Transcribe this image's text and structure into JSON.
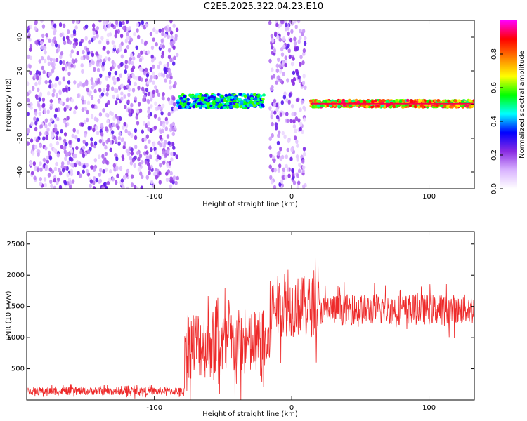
{
  "title": "C2E5.2025.322.04.23.E10",
  "chart_data": [
    {
      "type": "heatmap",
      "xlabel": "Height of straight line (km)",
      "ylabel": "Frequency (Hz)",
      "xlim": [
        -193,
        133
      ],
      "ylim": [
        -50,
        50
      ],
      "xticks": [
        -100,
        0,
        100
      ],
      "yticks": [
        -40,
        -20,
        0,
        20,
        40
      ],
      "colorbar": {
        "label": "Normalized spectral amplitude",
        "range": [
          0,
          1
        ],
        "ticks": [
          "0.0",
          "0.2",
          "0.4",
          "0.6",
          "0.8"
        ],
        "colormap": [
          "#ffffff",
          "#d9b3ff",
          "#8a2be2",
          "#0000ff",
          "#00ffff",
          "#00ff00",
          "#ffff00",
          "#ff8000",
          "#ff0000",
          "#ff00ff"
        ]
      },
      "regions": [
        {
          "x": [
            -193,
            -83
          ],
          "type": "broadband noise",
          "amplitude": 0.1
        },
        {
          "x": [
            -83,
            -20
          ],
          "type": "signal band",
          "center": 2,
          "halfwidth": 4,
          "amplitude": 0.6
        },
        {
          "x": [
            -16,
            10
          ],
          "type": "broadband noise",
          "amplitude": 0.1
        },
        {
          "x": [
            14,
            133
          ],
          "type": "narrow signal line",
          "center": 0.5,
          "halfwidth": 2,
          "amplitude": 0.95
        }
      ]
    },
    {
      "type": "line",
      "xlabel": "Height of straight line (km)",
      "ylabel": "SNR (10 * v/v)",
      "xlim": [
        -193,
        133
      ],
      "ylim": [
        0,
        2700
      ],
      "xticks": [
        -100,
        0,
        100
      ],
      "yticks": [
        500,
        1000,
        1500,
        2000,
        2500
      ],
      "color": "#ee2a2a",
      "segments": [
        {
          "x": [
            -193,
            -78
          ],
          "mean": 140,
          "spread": 90
        },
        {
          "x": [
            -78,
            -15
          ],
          "mean": 900,
          "spread": 800
        },
        {
          "x": [
            -15,
            20
          ],
          "mean": 1500,
          "spread": 700
        },
        {
          "x": [
            20,
            133
          ],
          "mean": 1450,
          "spread": 350
        }
      ]
    }
  ]
}
